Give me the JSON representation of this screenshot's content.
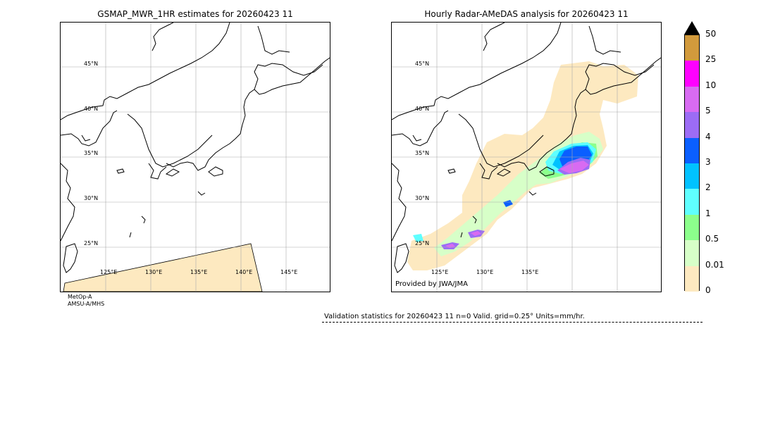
{
  "left_panel": {
    "title": "GSMAP_MWR_1HR estimates for 20260423 11",
    "lat_labels": [
      "45°N",
      "40°N",
      "35°N",
      "30°N",
      "25°N"
    ],
    "lon_labels": [
      "125°E",
      "130°E",
      "135°E",
      "140°E",
      "145°E"
    ],
    "sensor_line1": "MetOp-A",
    "sensor_line2": "AMSU-A/MHS",
    "swath_color": "#fde9c0"
  },
  "right_panel": {
    "title": "Hourly Radar-AMeDAS analysis for 20260423 11",
    "lat_labels": [
      "45°N",
      "40°N",
      "35°N",
      "30°N",
      "25°N"
    ],
    "lon_labels": [
      "125°E",
      "130°E",
      "135°E"
    ],
    "credit": "Provided by JWA/JMA"
  },
  "colorbar": {
    "labels": [
      "50",
      "25",
      "10",
      "5",
      "4",
      "3",
      "2",
      "1",
      "0.5",
      "0.01",
      "0"
    ],
    "colors": [
      "#d29a3c",
      "#ff00ff",
      "#d86bf2",
      "#9c6cf5",
      "#0a5fff",
      "#00c2ff",
      "#5fffff",
      "#8cff8c",
      "#d7ffc8",
      "#fde9c0"
    ],
    "overflow_color": "#000000"
  },
  "validation": {
    "text": "Validation statistics for 20260423 11  n=0 Valid. grid=0.25° Units=mm/hr."
  }
}
